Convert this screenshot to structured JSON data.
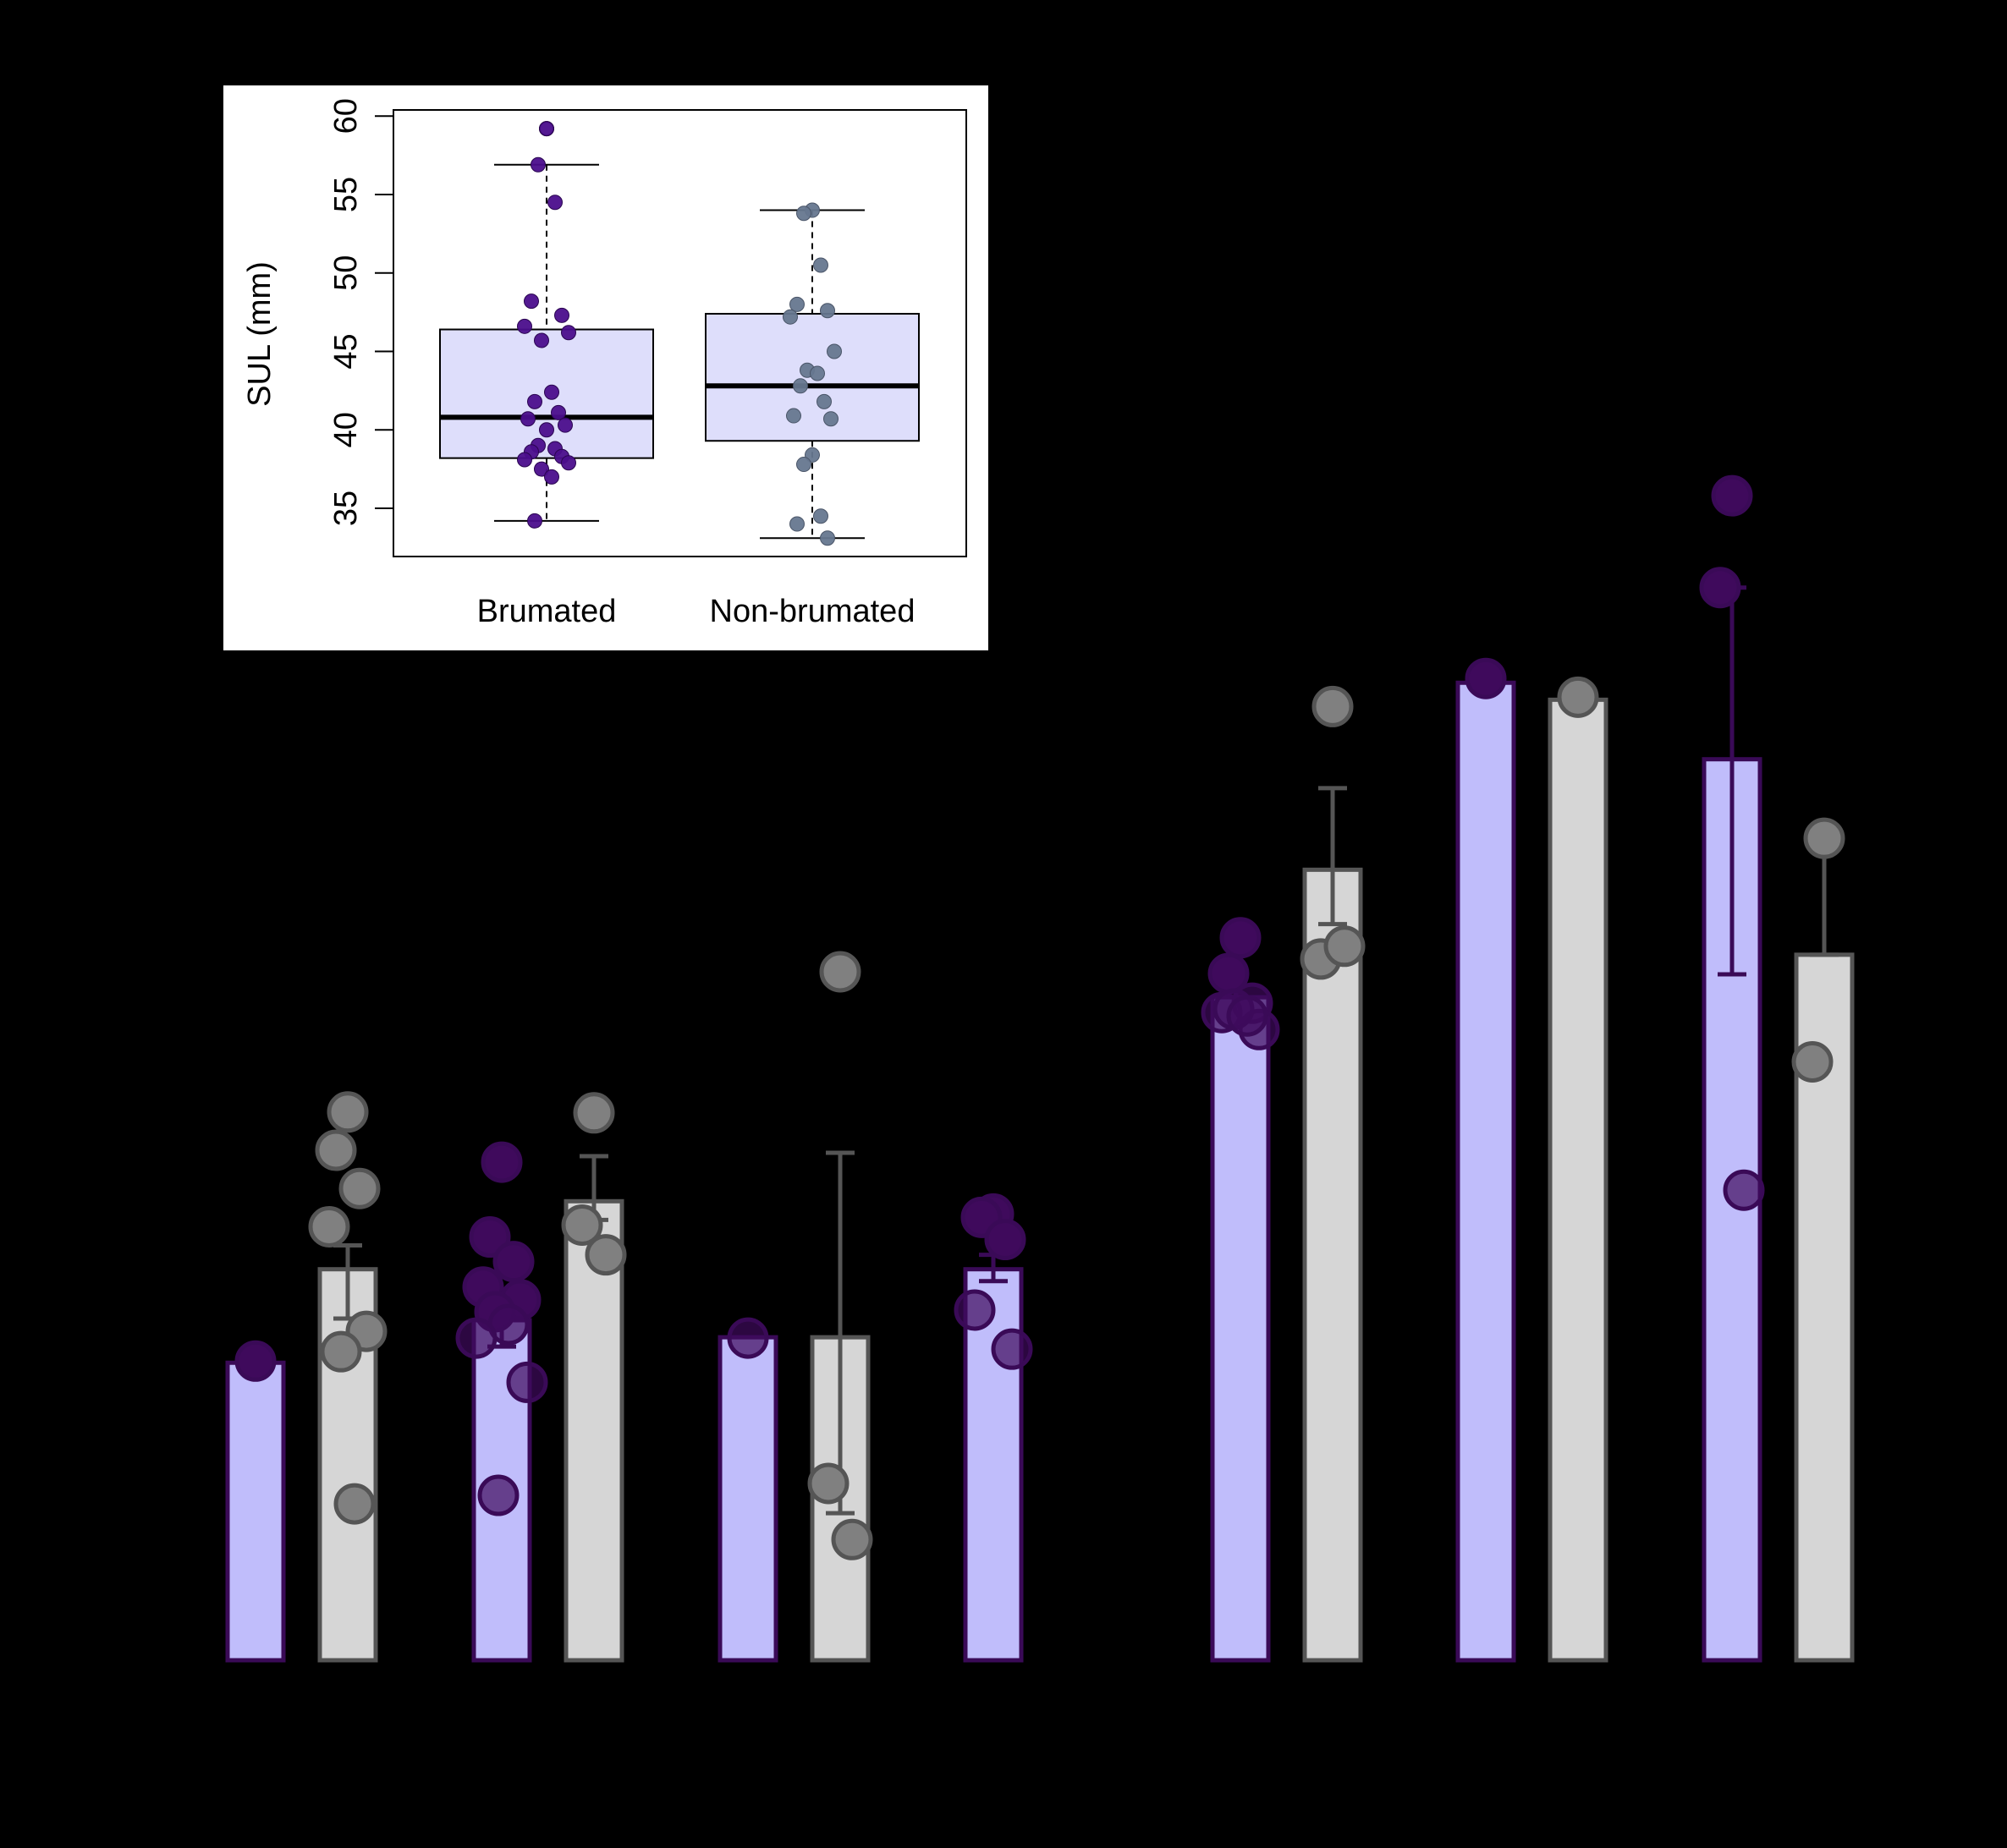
{
  "chart_data": [
    {
      "type": "bar",
      "title": "",
      "xlabel": "",
      "ylabel": "",
      "background": "#000000",
      "colors": {
        "brumated_fill": "#c0bdfb",
        "brumated_stroke": "#3a0a57",
        "brumated_point": "#3f0a5c",
        "nonbrumated_fill": "#d6d6d6",
        "nonbrumated_stroke": "#555555",
        "nonbrumated_point": "#808080"
      },
      "y_reference": [
        0,
        100
      ],
      "groups": [
        {
          "brumated": {
            "mean": 35,
            "error": null,
            "points": [
              35.2
            ]
          },
          "nonbrumated": {
            "mean": 46,
            "error": [
              40.2,
              48.8
            ],
            "points": [
              64.5,
              60.0,
              55.5,
              51.0,
              38.7,
              36.3,
              18.4
            ]
          }
        },
        {
          "brumated": {
            "mean": 40,
            "error": [
              36.9,
              40.5
            ],
            "points": [
              58.6,
              49.8,
              46.9,
              43.9,
              42.4,
              41.0,
              39.5,
              37.9,
              32.7,
              19.4
            ]
          },
          "nonbrumated": {
            "mean": 54,
            "error": [
              51.8,
              59.3
            ],
            "points": [
              64.4,
              51.2,
              47.7
            ]
          }
        },
        {
          "brumated": {
            "mean": 38,
            "error": null,
            "points": [
              37.9
            ]
          },
          "nonbrumated": {
            "mean": 38,
            "error": [
              17.3,
              59.7
            ],
            "points": [
              81.0,
              20.8,
              14.2
            ]
          }
        },
        {
          "brumated": {
            "mean": 46,
            "error": [
              44.6,
              47.7
            ],
            "points": [
              52.5,
              52.1,
              49.5,
              41.2,
              36.6
            ]
          },
          "nonbrumated": null
        },
        {
          "brumated": {
            "mean": 78,
            "error": null,
            "points": [
              85.0,
              80.8,
              77.3,
              76.2,
              74.2,
              76.6,
              75.8
            ]
          },
          "nonbrumated": {
            "mean": 93,
            "error": [
              86.6,
              102.6
            ],
            "points": [
              112.2,
              82.5,
              84.0
            ]
          }
        },
        {
          "brumated": {
            "mean": 115,
            "error": null,
            "points": [
              115.5
            ]
          },
          "nonbrumated": {
            "mean": 113,
            "error": null,
            "points": [
              113.3
            ]
          }
        },
        {
          "brumated": {
            "mean": 106,
            "error": [
              80.7,
              126.2
            ],
            "points": [
              137.0,
              126.2,
              55.3
            ]
          },
          "nonbrumated": {
            "mean": 83,
            "error": [
              83.0,
              96.7
            ],
            "points": [
              96.7,
              70.4
            ]
          }
        }
      ]
    },
    {
      "type": "box",
      "title": "",
      "ylabel": "SUL (mm)",
      "categories": [
        "Brumated",
        "Non-brumated"
      ],
      "y_ticks": [
        "35",
        "40",
        "45",
        "50",
        "55",
        "60"
      ],
      "ylim": [
        32,
        60.5
      ],
      "colors": {
        "box_fill": "#dedefb",
        "brumated_point": "#4b0e8c",
        "nonbrumated_point": "#66778f",
        "median": "#000000"
      },
      "boxes": [
        {
          "name": "Brumated",
          "min": 34.2,
          "q1": 38.2,
          "median": 40.8,
          "q3": 46.4,
          "max": 56.9,
          "outliers": [
            59.2
          ]
        },
        {
          "name": "Non-brumated",
          "min": 33.1,
          "q1": 39.3,
          "median": 42.8,
          "q3": 47.4,
          "max": 54.0,
          "outliers": []
        }
      ],
      "points": [
        [
          59.2,
          56.9,
          54.5,
          48.2,
          47.3,
          46.6,
          46.2,
          45.7,
          42.4,
          41.8,
          41.1,
          40.7,
          40.3,
          40.0,
          39.0,
          38.8,
          38.6,
          38.3,
          38.1,
          37.9,
          37.5,
          37.0,
          34.2
        ],
        [
          54.0,
          53.8,
          50.5,
          48.0,
          47.6,
          47.2,
          45.0,
          43.8,
          43.6,
          42.8,
          41.8,
          40.9,
          40.7,
          38.4,
          37.8,
          34.5,
          34.0,
          33.1
        ]
      ]
    }
  ]
}
